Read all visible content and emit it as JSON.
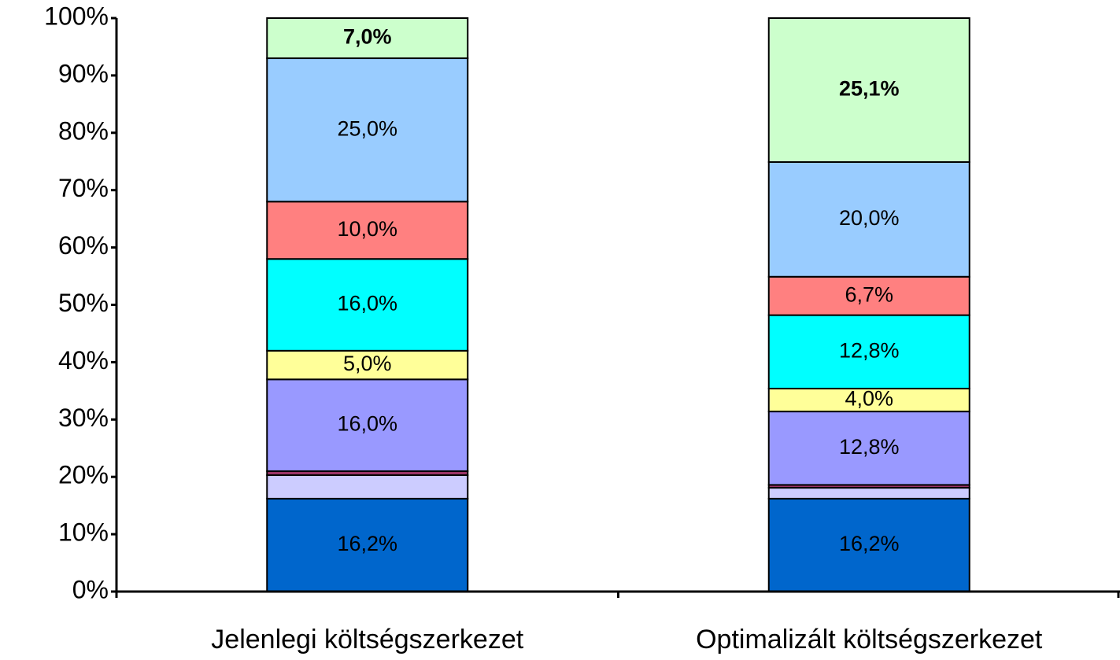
{
  "chart_data": {
    "type": "stacked_bar",
    "categories": [
      "Jelenlegi költségszerkezet",
      "Optimalizált költségszerkezet"
    ],
    "series": [
      {
        "color": "#0066cc",
        "values": [
          16.2,
          16.2
        ],
        "value_labels": [
          "16,2%",
          "16,2%"
        ]
      },
      {
        "color": "#ccccff",
        "values": [
          4.1,
          1.9
        ],
        "value_labels": [
          null,
          null
        ]
      },
      {
        "color": "#993366",
        "values": [
          0.7,
          0.5
        ],
        "value_labels": [
          null,
          null
        ]
      },
      {
        "color": "#9999ff",
        "values": [
          16.0,
          12.8
        ],
        "value_labels": [
          "16,0%",
          "12,8%"
        ]
      },
      {
        "color": "#ffff99",
        "values": [
          5.0,
          4.0
        ],
        "value_labels": [
          "5,0%",
          "4,0%"
        ]
      },
      {
        "color": "#00ffff",
        "values": [
          16.0,
          12.8
        ],
        "value_labels": [
          "16,0%",
          "12,8%"
        ]
      },
      {
        "color": "#ff8080",
        "values": [
          10.0,
          6.7
        ],
        "value_labels": [
          "10,0%",
          "6,7%"
        ]
      },
      {
        "color": "#99ccff",
        "values": [
          25.0,
          20.0
        ],
        "value_labels": [
          "25,0%",
          "20,0%"
        ]
      },
      {
        "color": "#ccffcc",
        "values": [
          7.0,
          25.1
        ],
        "value_labels": [
          "7,0%",
          "25,1%"
        ],
        "label_bold": true
      }
    ],
    "ylim": [
      0,
      100
    ],
    "yticks": [
      {
        "value": 0,
        "label": "0%"
      },
      {
        "value": 10,
        "label": "10%"
      },
      {
        "value": 20,
        "label": "20%"
      },
      {
        "value": 30,
        "label": "30%"
      },
      {
        "value": 40,
        "label": "40%"
      },
      {
        "value": 50,
        "label": "50%"
      },
      {
        "value": 60,
        "label": "60%"
      },
      {
        "value": 70,
        "label": "70%"
      },
      {
        "value": 80,
        "label": "80%"
      },
      {
        "value": 90,
        "label": "90%"
      },
      {
        "value": 100,
        "label": "100%"
      }
    ],
    "grid": false
  }
}
